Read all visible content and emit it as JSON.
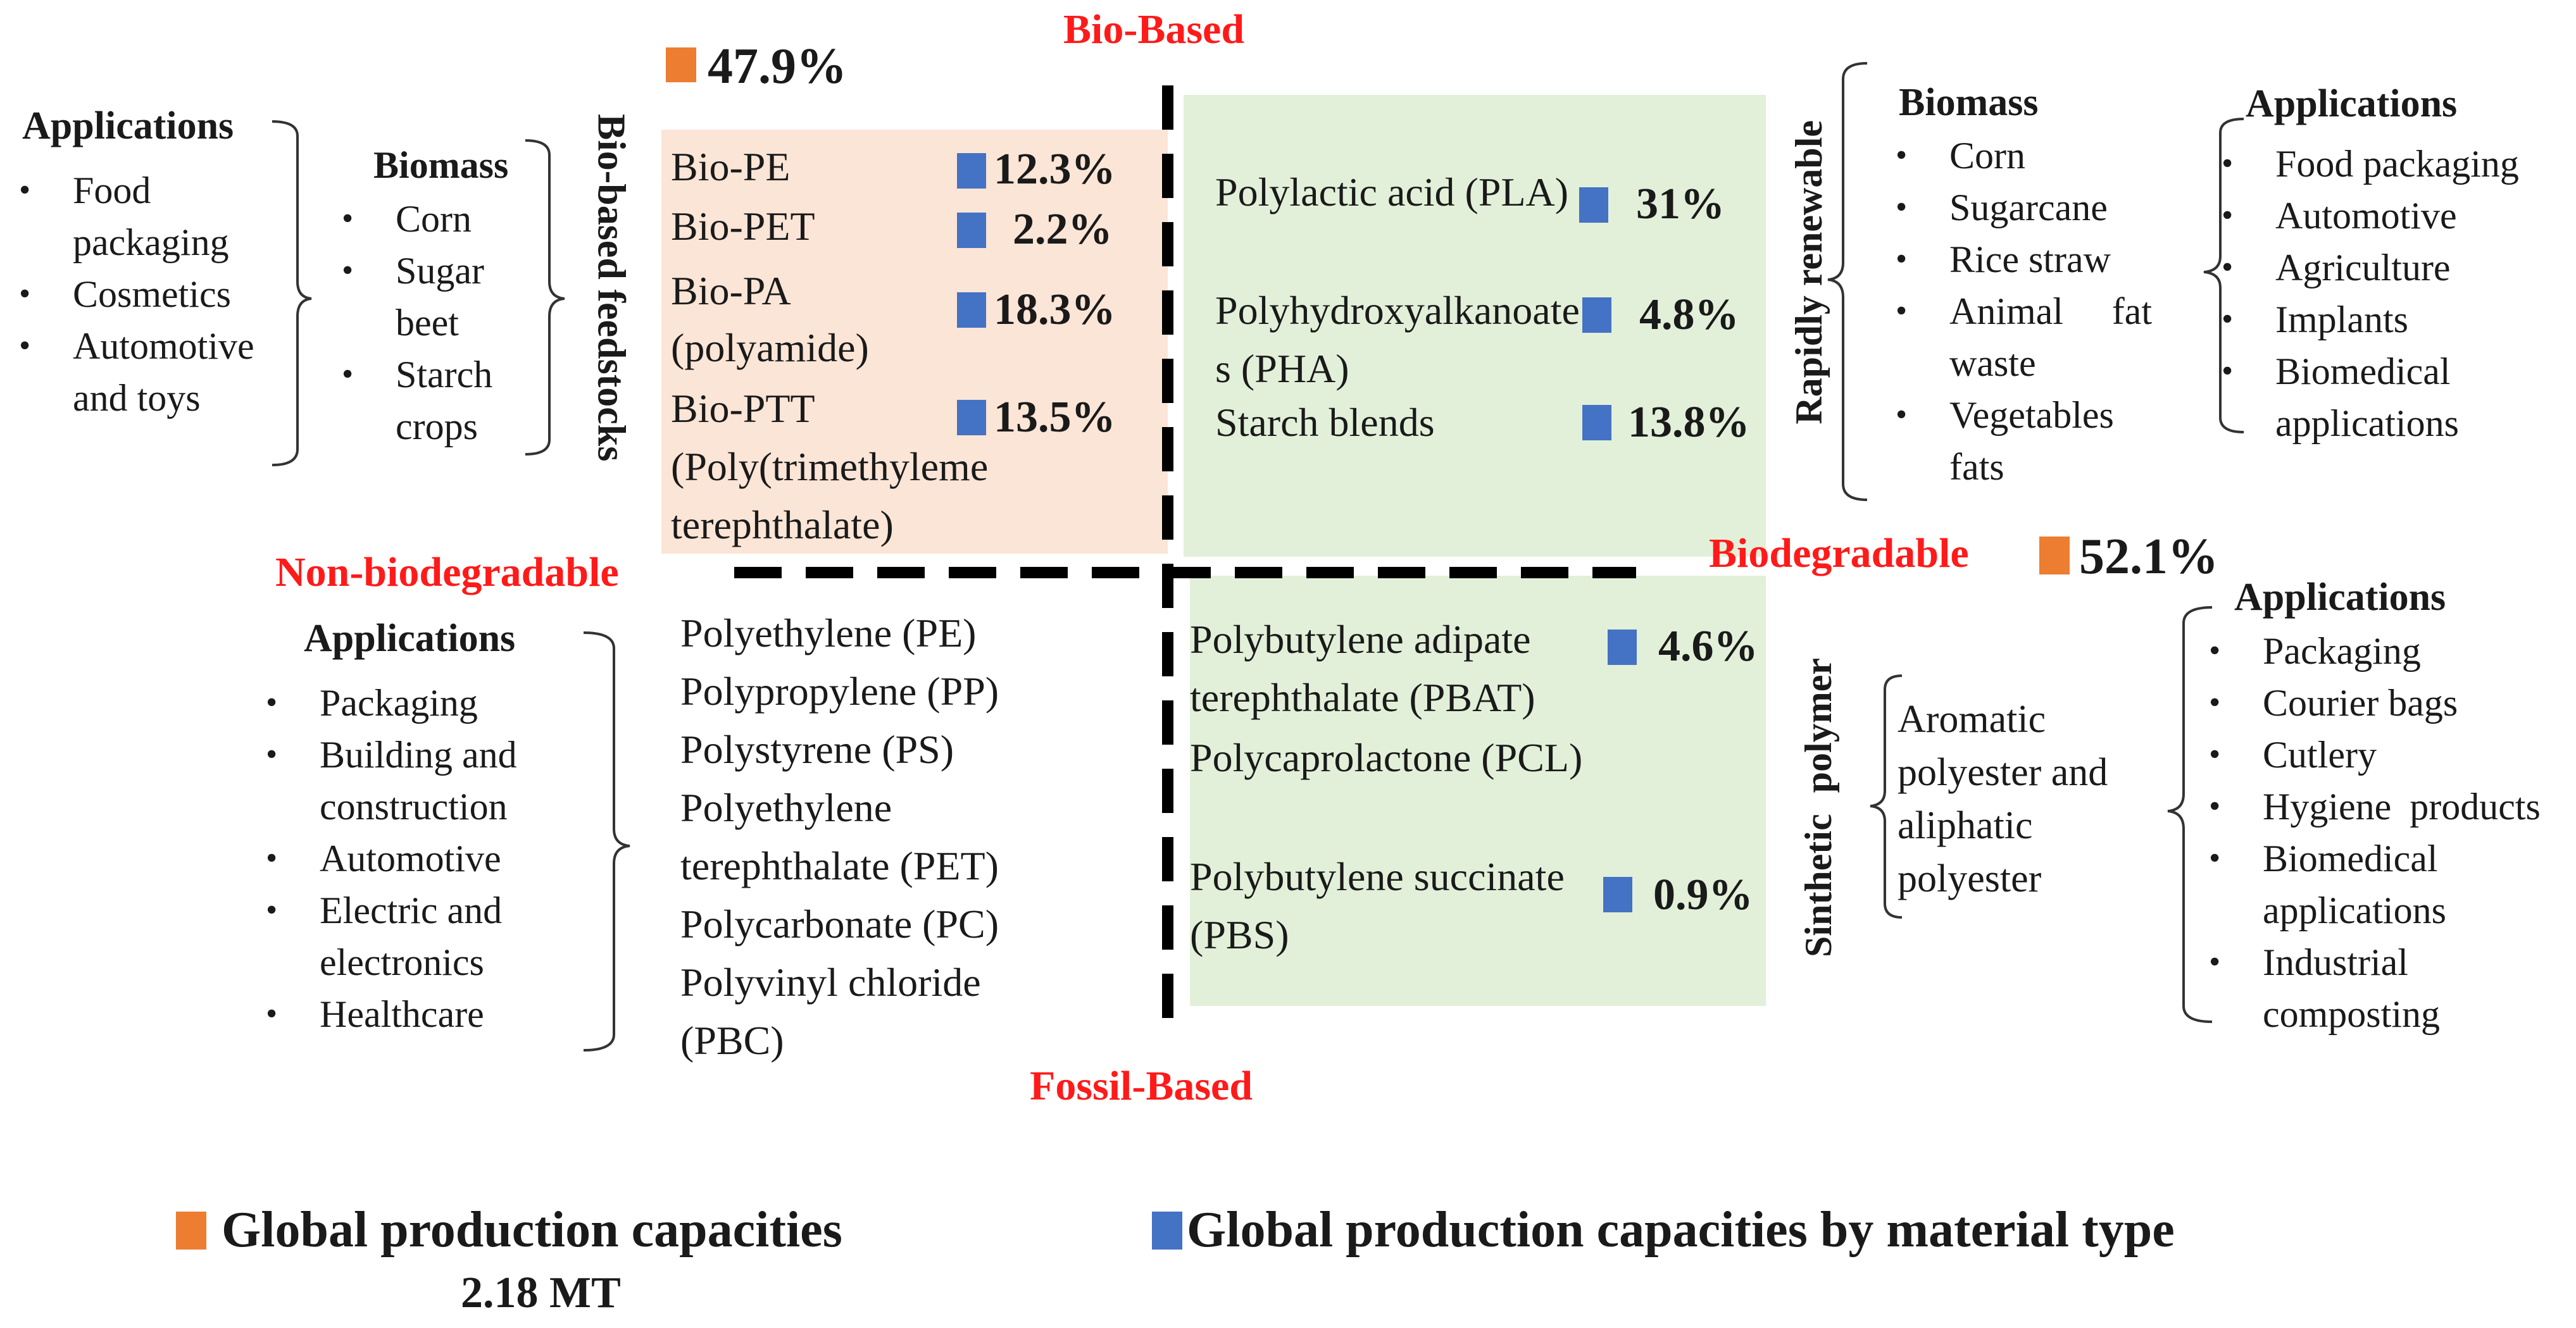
{
  "axes": {
    "top": "Bio-Based",
    "bottom": "Fossil-Based",
    "left": "Non-biodegradable",
    "right": "Biodegradable"
  },
  "totals": {
    "bio_based_pct": "47.9%",
    "biodegradable_pct": "52.1%"
  },
  "top_left": {
    "side_label": "Bio-based feedstocks",
    "applications": {
      "title": "Applications",
      "items": [
        "Food packaging",
        "Cosmetics",
        "Automotive and toys"
      ]
    },
    "biomass": {
      "title": "Biomass",
      "items": [
        "Corn",
        "Sugar beet",
        "Starch crops"
      ]
    },
    "materials": [
      {
        "name": "Bio-PE",
        "pct": "12.3%"
      },
      {
        "name": "Bio-PET",
        "pct": "2.2%"
      },
      {
        "name": "Bio-PA (polyamide)",
        "pct": "18.3%"
      },
      {
        "name": "Bio-PTT (Poly(trimethyleme terephthalate)",
        "pct": "13.5%"
      }
    ]
  },
  "top_right": {
    "side_label": "Rapidly renewable",
    "biomass": {
      "title": "Biomass",
      "items": [
        "Corn",
        "Sugarcane",
        "Rice straw",
        "Animal fat waste",
        "Vegetables fats"
      ]
    },
    "applications": {
      "title": "Applications",
      "items": [
        "Food packaging",
        "Automotive",
        "Agriculture",
        "Implants",
        "Biomedical applications"
      ]
    },
    "materials": [
      {
        "name": "Polylactic acid (PLA)",
        "pct": "31%"
      },
      {
        "name": "Polyhydroxyalkanoates (PHA)",
        "pct": "4.8%"
      },
      {
        "name": "Starch blends",
        "pct": "13.8%"
      }
    ]
  },
  "bottom_left": {
    "applications": {
      "title": "Applications",
      "items": [
        "Packaging",
        "Building and construction",
        "Automotive",
        "Electric and electronics",
        "Healthcare"
      ]
    },
    "materials": [
      "Polyethylene (PE)",
      "Polypropylene (PP)",
      "Polystyrene (PS)",
      "Polyethylene terephthalate (PET)",
      "Polycarbonate (PC)",
      "Polyvinyl chloride (PBC)"
    ]
  },
  "bottom_right": {
    "side_label": "Sinthetic polymer",
    "type_text": "Aromatic polyester and aliphatic polyester",
    "applications": {
      "title": "Applications",
      "items": [
        "Packaging",
        "Courier bags",
        "Cutlery",
        "Hygiene products",
        "Biomedical applications",
        "Industrial composting"
      ]
    },
    "materials": [
      {
        "name": "Polybutylene adipate terephthalate (PBAT)",
        "pct": "4.6%"
      },
      {
        "name": "Polycaprolactone (PCL)",
        "pct": ""
      },
      {
        "name": "Polybutylene succinate (PBS)",
        "pct": "0.9%"
      }
    ]
  },
  "legend": {
    "orange_label": "Global production capacities",
    "orange_sub": "2.18 MT",
    "blue_label": "Global production capacities by material type"
  },
  "colors": {
    "orange": "#ed7d31",
    "blue": "#4472c4",
    "peach_bg": "#fbe5d6",
    "green_bg": "#e2f0d9",
    "red_text": "#ff1a1a"
  }
}
